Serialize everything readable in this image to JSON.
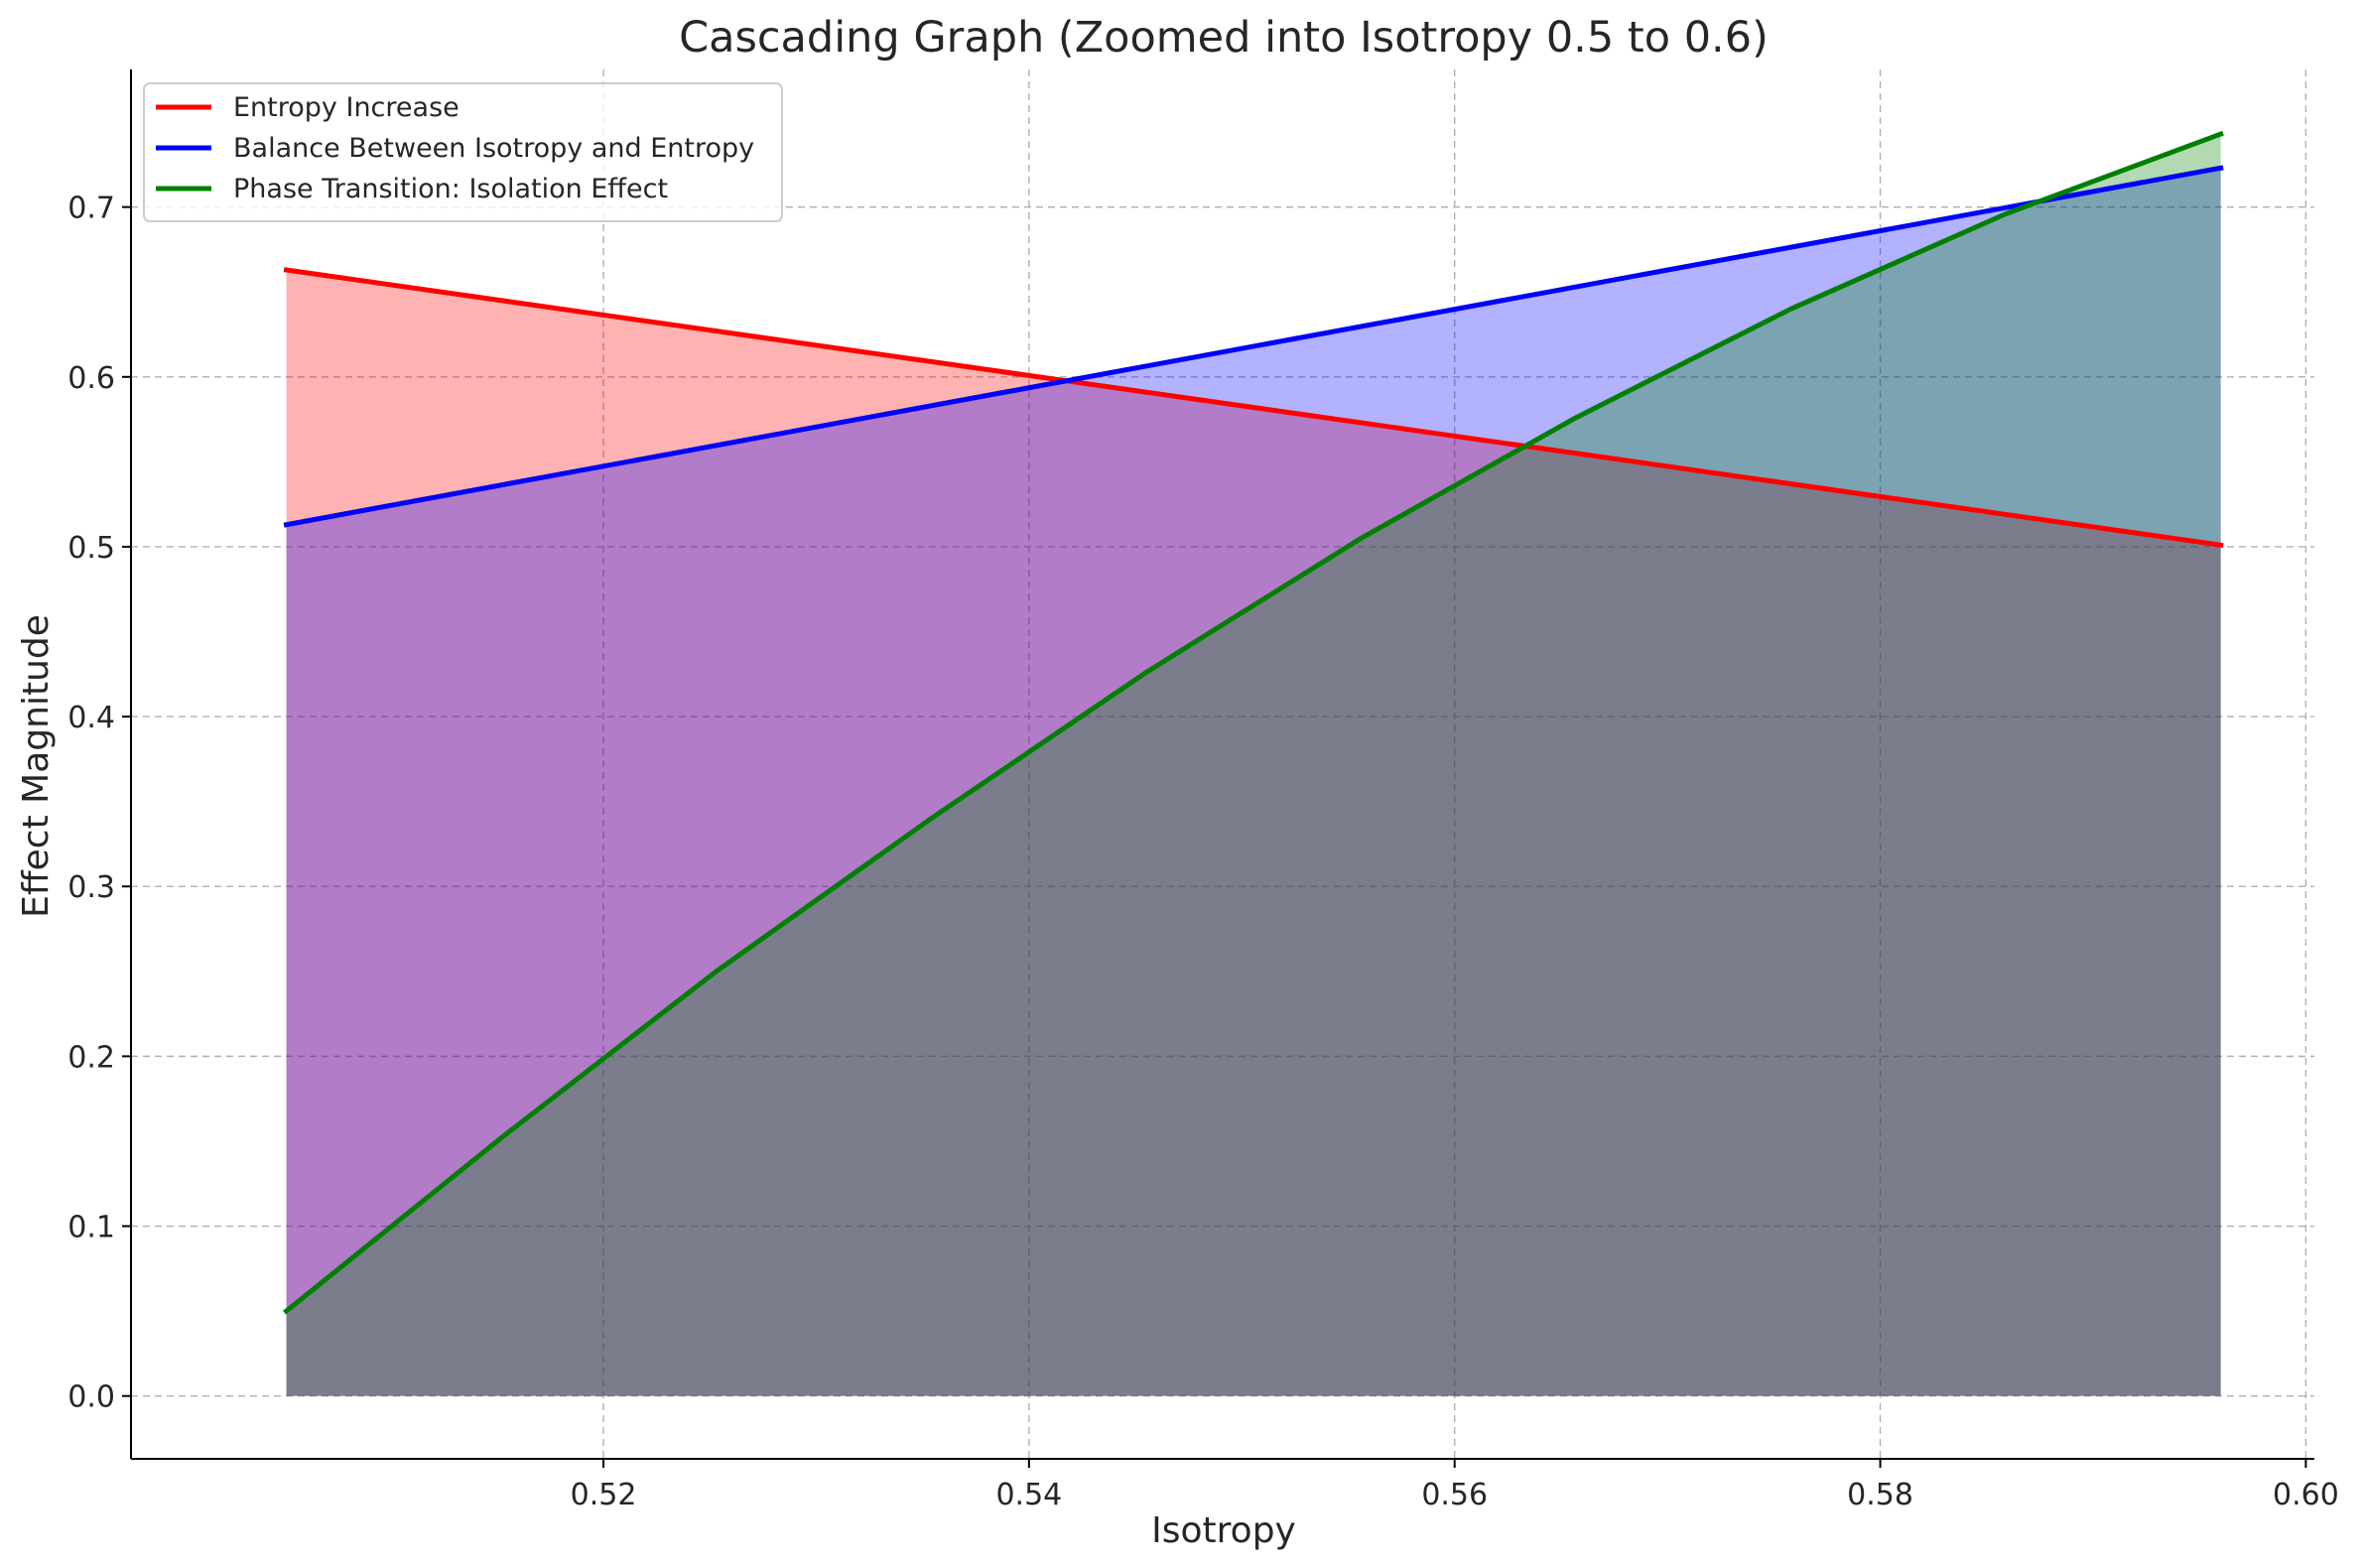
{
  "chart_data": {
    "type": "area",
    "title": "Cascading Graph (Zoomed into Isotropy 0.5 to 0.6)",
    "xlabel": "Isotropy",
    "ylabel": "Effect Magnitude",
    "xlim": [
      0.4978,
      0.6004
    ],
    "ylim": [
      -0.037,
      0.781
    ],
    "xticks": [
      0.52,
      0.54,
      0.56,
      0.58,
      0.6
    ],
    "xtick_labels": [
      "0.52",
      "0.54",
      "0.56",
      "0.58",
      "0.60"
    ],
    "yticks": [
      0.0,
      0.1,
      0.2,
      0.3,
      0.4,
      0.5,
      0.6,
      0.7
    ],
    "ytick_labels": [
      "0.0",
      "0.1",
      "0.2",
      "0.3",
      "0.4",
      "0.5",
      "0.6",
      "0.7"
    ],
    "grid": true,
    "legend_position": "top-left",
    "series": [
      {
        "name": "Entropy Increase",
        "color": "#ff0000",
        "fill_alpha": 0.3,
        "x": [
          0.5051,
          0.596
        ],
        "y": [
          0.663,
          0.501
        ]
      },
      {
        "name": "Balance Between Isotropy and Entropy",
        "color": "#0000ff",
        "fill_alpha": 0.3,
        "x": [
          0.5051,
          0.596
        ],
        "y": [
          0.513,
          0.723
        ]
      },
      {
        "name": "Phase Transition: Isolation Effect",
        "color": "#008000",
        "fill_alpha": 0.3,
        "x": [
          0.5051,
          0.5152,
          0.5253,
          0.5354,
          0.5455,
          0.5556,
          0.5657,
          0.5758,
          0.5859,
          0.596
        ],
        "y": [
          0.05,
          0.152,
          0.25,
          0.34,
          0.426,
          0.505,
          0.576,
          0.64,
          0.696,
          0.743
        ]
      }
    ]
  }
}
